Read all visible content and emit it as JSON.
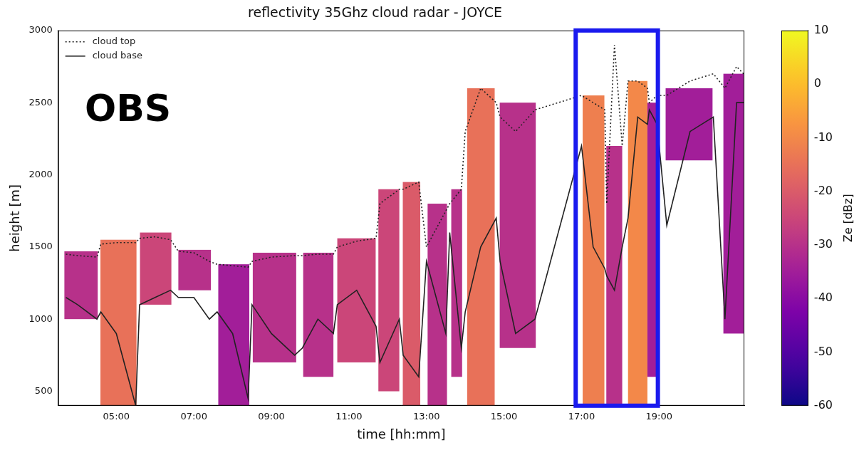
{
  "chart_data": {
    "type": "timeheight",
    "title": "reflectivity 35Ghz cloud radar - JOYCE",
    "x_label": "time [hh:mm]",
    "y_label": "height [m]",
    "annotations": [
      {
        "text": "OBS",
        "x": 5.3,
        "y": 2440
      }
    ],
    "legend": "upper left",
    "grid": false,
    "xlim": [
      3.5,
      21.2
    ],
    "xticks": [
      {
        "value": 5,
        "label": "05:00"
      },
      {
        "value": 7,
        "label": "07:00"
      },
      {
        "value": 9,
        "label": "09:00"
      },
      {
        "value": 11,
        "label": "11:00"
      },
      {
        "value": 13,
        "label": "13:00"
      },
      {
        "value": 15,
        "label": "15:00"
      },
      {
        "value": 17,
        "label": "17:00"
      },
      {
        "value": 19,
        "label": "19:00"
      }
    ],
    "ylim": [
      400,
      3000
    ],
    "yticks": [
      500,
      1000,
      1500,
      2000,
      2500,
      3000
    ],
    "x": [
      3.7,
      4.0,
      4.5,
      4.6,
      5.0,
      5.5,
      5.6,
      6.0,
      6.4,
      6.6,
      7.0,
      7.4,
      7.6,
      8.0,
      8.4,
      8.5,
      9.0,
      9.6,
      9.8,
      10.2,
      10.6,
      10.7,
      11.2,
      11.7,
      11.8,
      12.3,
      12.4,
      12.8,
      13.0,
      13.5,
      13.6,
      13.9,
      14.0,
      14.4,
      14.8,
      14.9,
      15.3,
      15.8,
      17.0,
      17.3,
      17.6,
      17.65,
      17.85,
      18.05,
      18.2,
      18.45,
      18.7,
      18.75,
      18.95,
      19.2,
      19.8,
      20.4,
      20.7,
      21.0,
      21.18
    ],
    "series": [
      {
        "name": "cloud top",
        "color": "#222222",
        "line_style": "dotted",
        "values": [
          1450,
          1440,
          1430,
          1520,
          1530,
          1530,
          1560,
          1570,
          1550,
          1470,
          1460,
          1400,
          1380,
          1370,
          1360,
          1400,
          1430,
          1440,
          1440,
          1450,
          1450,
          1500,
          1540,
          1560,
          1800,
          1900,
          1900,
          1950,
          1500,
          1750,
          1800,
          1900,
          2300,
          2600,
          2500,
          2400,
          2300,
          2450,
          2550,
          2500,
          2450,
          1800,
          2900,
          2200,
          2650,
          2650,
          2600,
          2500,
          2550,
          2550,
          2650,
          2700,
          2600,
          2750,
          2700
        ]
      },
      {
        "name": "cloud base",
        "color": "#222222",
        "line_style": "solid",
        "values": [
          1150,
          1100,
          1000,
          1050,
          900,
          400,
          1100,
          1150,
          1200,
          1150,
          1150,
          1000,
          1050,
          900,
          450,
          1100,
          900,
          750,
          800,
          1000,
          900,
          1100,
          1200,
          950,
          700,
          1000,
          750,
          600,
          1400,
          900,
          1600,
          800,
          1050,
          1500,
          1700,
          1400,
          900,
          1000,
          2200,
          1500,
          1350,
          1300,
          1200,
          1500,
          1700,
          2400,
          2350,
          2450,
          2350,
          1650,
          2300,
          2400,
          1000,
          2500,
          2500
        ]
      }
    ],
    "reflectivity_columns": [
      {
        "start": 3.66,
        "end": 4.52,
        "base": 1000,
        "top": 1470,
        "ze": -30
      },
      {
        "start": 4.59,
        "end": 5.52,
        "base": 400,
        "top": 1550,
        "ze": -15
      },
      {
        "start": 5.61,
        "end": 6.42,
        "base": 1100,
        "top": 1600,
        "ze": -25
      },
      {
        "start": 6.6,
        "end": 7.44,
        "base": 1200,
        "top": 1480,
        "ze": -30
      },
      {
        "start": 7.63,
        "end": 8.43,
        "base": 400,
        "top": 1380,
        "ze": -35
      },
      {
        "start": 8.52,
        "end": 9.64,
        "base": 700,
        "top": 1460,
        "ze": -30
      },
      {
        "start": 9.82,
        "end": 10.6,
        "base": 600,
        "top": 1460,
        "ze": -30
      },
      {
        "start": 10.7,
        "end": 11.69,
        "base": 700,
        "top": 1560,
        "ze": -25
      },
      {
        "start": 11.76,
        "end": 12.3,
        "base": 500,
        "top": 1900,
        "ze": -25
      },
      {
        "start": 12.39,
        "end": 12.84,
        "base": 400,
        "top": 1950,
        "ze": -20
      },
      {
        "start": 13.03,
        "end": 13.53,
        "base": 400,
        "top": 1800,
        "ze": -30
      },
      {
        "start": 13.64,
        "end": 13.92,
        "base": 600,
        "top": 1900,
        "ze": -30
      },
      {
        "start": 14.05,
        "end": 14.76,
        "base": 400,
        "top": 2600,
        "ze": -15
      },
      {
        "start": 14.89,
        "end": 15.82,
        "base": 800,
        "top": 2500,
        "ze": -30
      },
      {
        "start": 17.03,
        "end": 17.59,
        "base": 400,
        "top": 2550,
        "ze": -12
      },
      {
        "start": 17.64,
        "end": 18.05,
        "base": 400,
        "top": 2200,
        "ze": -30
      },
      {
        "start": 18.2,
        "end": 18.7,
        "base": 400,
        "top": 2650,
        "ze": -10
      },
      {
        "start": 18.7,
        "end": 18.98,
        "base": 600,
        "top": 2500,
        "ze": -35
      },
      {
        "start": 19.17,
        "end": 20.38,
        "base": 2100,
        "top": 2600,
        "ze": -35
      },
      {
        "start": 20.66,
        "end": 21.18,
        "base": 900,
        "top": 2700,
        "ze": -35
      }
    ],
    "highlight": {
      "xlim": [
        16.85,
        18.97
      ],
      "color": "#1a1aee"
    },
    "colorbar": {
      "label": "Ze [dBz]",
      "range": [
        -60,
        10
      ],
      "ticks": [
        10,
        0,
        -10,
        -20,
        -30,
        -40,
        -50,
        -60
      ]
    }
  }
}
